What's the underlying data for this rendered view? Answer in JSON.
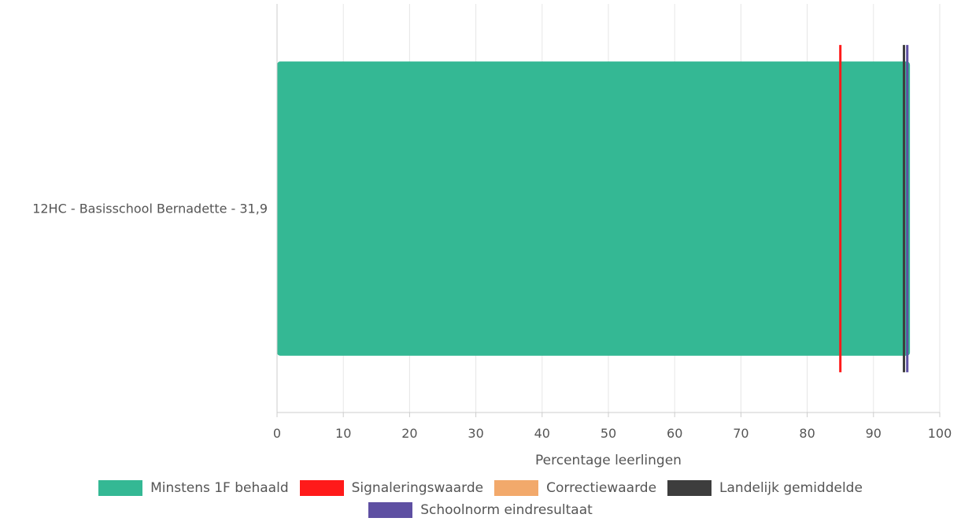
{
  "chart_data": {
    "type": "bar",
    "orientation": "horizontal",
    "categories": [
      "12HC - Basisschool Bernadette - 31,9"
    ],
    "series": [
      {
        "name": "Minstens 1F behaald",
        "values": [
          95.5
        ],
        "color": "#34b894"
      }
    ],
    "reference_lines": [
      {
        "name": "Signaleringswaarde",
        "value": 85,
        "color": "#ff1a1a"
      },
      {
        "name": "Landelijk gemiddelde",
        "value": 94.6,
        "color": "#3d3d3d"
      },
      {
        "name": "Schoolnorm eindresultaat",
        "value": 95.1,
        "color": "#5e4fa2"
      }
    ],
    "xlabel": "Percentage leerlingen",
    "xlim": [
      0,
      100
    ],
    "xticks": [
      0,
      10,
      20,
      30,
      40,
      50,
      60,
      70,
      80,
      90,
      100
    ],
    "grid": true,
    "legend_position": "bottom"
  },
  "legend": {
    "items": [
      {
        "label": "Minstens 1F behaald",
        "color": "#34b894"
      },
      {
        "label": "Signaleringswaarde",
        "color": "#ff1a1a"
      },
      {
        "label": "Correctiewaarde",
        "color": "#f2a96b"
      },
      {
        "label": "Landelijk gemiddelde",
        "color": "#3d3d3d"
      },
      {
        "label": "Schoolnorm eindresultaat",
        "color": "#5e4fa2"
      }
    ]
  }
}
